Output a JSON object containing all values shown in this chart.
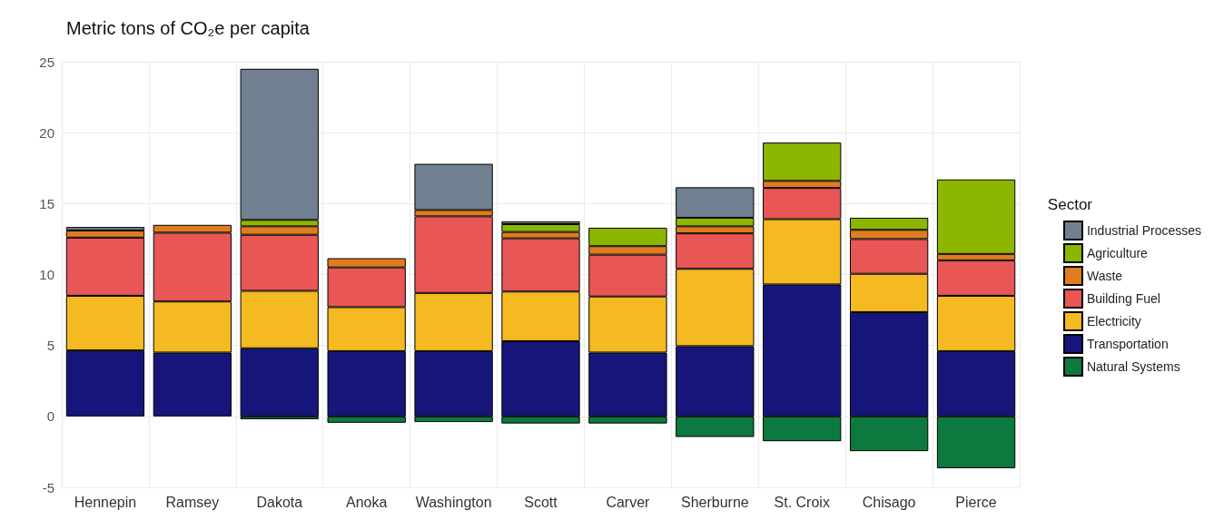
{
  "chart_data": {
    "type": "bar",
    "title": "Metric tons of CO₂e per capita",
    "legend_title": "Sector",
    "stacked": true,
    "legend": "right",
    "grid": true,
    "categories": [
      "Hennepin",
      "Ramsey",
      "Dakota",
      "Anoka",
      "Washington",
      "Scott",
      "Carver",
      "Sherburne",
      "St. Croix",
      "Chisago",
      "Pierce"
    ],
    "ylim": [
      -5,
      25
    ],
    "yticks": [
      -5,
      0,
      5,
      10,
      15,
      20,
      25
    ],
    "series": [
      {
        "name": "Natural Systems",
        "color": "#0c7a3e",
        "values": [
          null,
          null,
          -0.2,
          -0.45,
          -0.4,
          -0.5,
          -0.5,
          -1.45,
          -1.75,
          -2.45,
          -3.65
        ]
      },
      {
        "name": "Transportation",
        "color": "#16167a",
        "values": [
          4.65,
          4.5,
          4.8,
          4.6,
          4.6,
          5.3,
          4.5,
          4.95,
          9.3,
          7.35,
          4.6
        ]
      },
      {
        "name": "Electricity",
        "color": "#f5b921",
        "values": [
          3.85,
          3.6,
          4.05,
          3.1,
          4.1,
          3.5,
          3.95,
          5.45,
          4.6,
          2.7,
          3.9
        ]
      },
      {
        "name": "Building Fuel",
        "color": "#e85656",
        "values": [
          4.1,
          4.85,
          3.95,
          2.8,
          5.4,
          3.75,
          2.95,
          2.5,
          2.2,
          2.45,
          2.5
        ]
      },
      {
        "name": "Waste",
        "color": "#e07b1f",
        "values": [
          0.5,
          0.55,
          0.6,
          0.65,
          0.45,
          0.45,
          0.6,
          0.5,
          0.5,
          0.65,
          0.45
        ]
      },
      {
        "name": "Agriculture",
        "color": "#8db600",
        "values": [
          null,
          null,
          0.45,
          null,
          null,
          0.55,
          1.3,
          0.6,
          2.7,
          0.85,
          5.25
        ]
      },
      {
        "name": "Industrial Processes",
        "color": "#708090",
        "values": [
          0.25,
          null,
          10.65,
          null,
          3.25,
          0.2,
          null,
          2.15,
          null,
          null,
          null
        ]
      }
    ]
  }
}
